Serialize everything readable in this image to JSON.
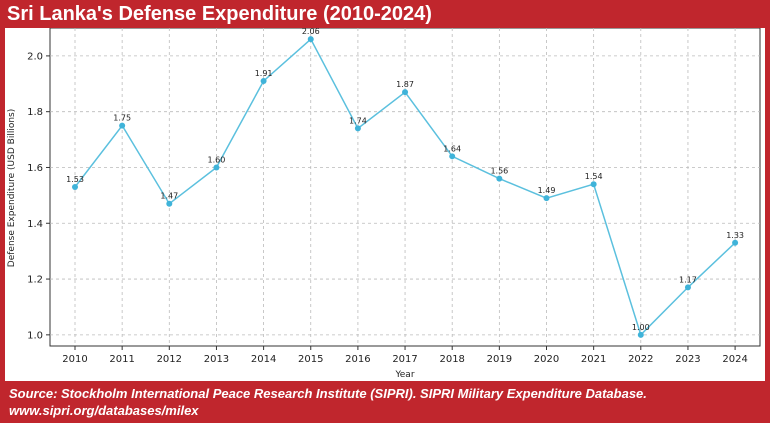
{
  "header": {
    "title": "Sri Lanka's Defense Expenditure (2010-2024)"
  },
  "footer": {
    "source_line1": "Source: Stockholm International Peace Research Institute (SIPRI). SIPRI Military Expenditure Database.",
    "source_line2": "www.sipri.org/databases/milex"
  },
  "colors": {
    "frame": "#c0262d",
    "line": "#5bc0de",
    "marker": "#3fb3d9"
  },
  "chart_data": {
    "type": "line",
    "title": "Sri Lanka's Defense Expenditure (2010-2024)",
    "xlabel": "Year",
    "ylabel": "Defense Expenditure (USD Billions)",
    "x": [
      2010,
      2011,
      2012,
      2013,
      2014,
      2015,
      2016,
      2017,
      2018,
      2019,
      2020,
      2021,
      2022,
      2023,
      2024
    ],
    "values": [
      1.53,
      1.75,
      1.47,
      1.6,
      1.91,
      2.06,
      1.74,
      1.87,
      1.64,
      1.56,
      1.49,
      1.54,
      1.0,
      1.17,
      1.33
    ],
    "data_labels": [
      "1.53",
      "1.75",
      "1.47",
      "1.60",
      "1.91",
      "2.06",
      "1.74",
      "1.87",
      "1.64",
      "1.56",
      "1.49",
      "1.54",
      "1.00",
      "1.17",
      "1.33"
    ],
    "yticks": [
      "1.0",
      "1.2",
      "1.4",
      "1.6",
      "1.8",
      "2.0"
    ],
    "ylim": [
      0.96,
      2.1
    ],
    "grid": true,
    "legend": "none"
  }
}
